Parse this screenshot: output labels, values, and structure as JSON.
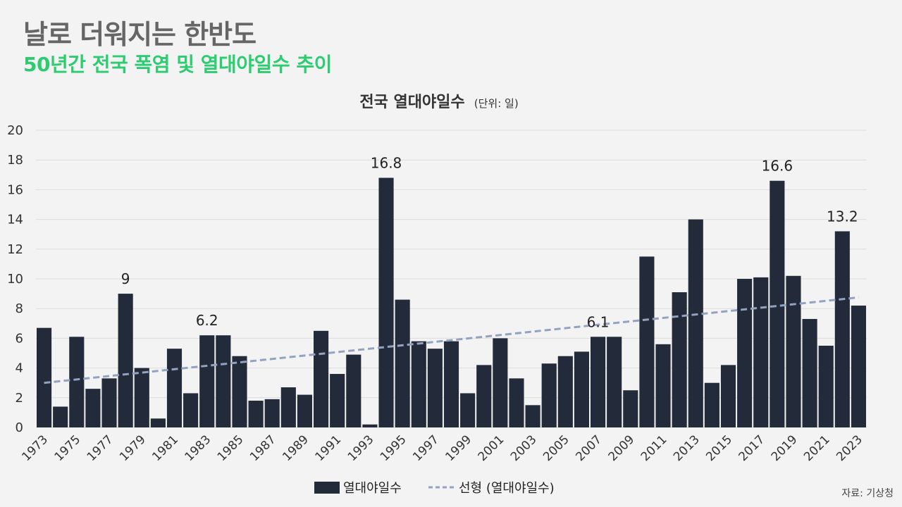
{
  "header": {
    "title": "날로 더워지는 한반도",
    "subtitle": "50년간 전국 폭염 및 열대야일수 추이"
  },
  "source": "자료: 기상청",
  "colors": {
    "bar": "#232b3a",
    "trend": "#93a3bf",
    "title": "#666666",
    "subtitle": "#2ecc71",
    "grid": "#dcdcdc"
  },
  "chart_data": {
    "type": "bar",
    "title": "전국 열대야일수",
    "unit_label": "(단위: 일)",
    "ylim": [
      0,
      20
    ],
    "yticks": [
      "0",
      "2",
      "4",
      "6",
      "8",
      "10",
      "12",
      "14",
      "16",
      "18",
      "20"
    ],
    "grid": true,
    "legend_position": "bottom",
    "categories": [
      "1973",
      "1974",
      "1975",
      "1976",
      "1977",
      "1978",
      "1979",
      "1980",
      "1981",
      "1982",
      "1983",
      "1984",
      "1985",
      "1986",
      "1987",
      "1988",
      "1989",
      "1990",
      "1991",
      "1992",
      "1993",
      "1994",
      "1995",
      "1996",
      "1997",
      "1998",
      "1999",
      "2000",
      "2001",
      "2002",
      "2003",
      "2004",
      "2005",
      "2006",
      "2007",
      "2008",
      "2009",
      "2010",
      "2011",
      "2012",
      "2013",
      "2014",
      "2015",
      "2016",
      "2017",
      "2018",
      "2019",
      "2020",
      "2021",
      "2022",
      "2023"
    ],
    "xtick_labels": [
      "1973",
      "1975",
      "1977",
      "1979",
      "1981",
      "1983",
      "1985",
      "1987",
      "1989",
      "1991",
      "1993",
      "1995",
      "1997",
      "1999",
      "2001",
      "2003",
      "2005",
      "2007",
      "2009",
      "2011",
      "2013",
      "2015",
      "2017",
      "2019",
      "2021",
      "2023"
    ],
    "series": [
      {
        "name": "열대야일수",
        "values": [
          6.7,
          1.4,
          6.1,
          2.6,
          3.3,
          9.0,
          4.0,
          0.6,
          5.3,
          2.3,
          6.2,
          6.2,
          4.8,
          1.8,
          1.9,
          2.7,
          2.2,
          6.5,
          3.6,
          4.9,
          0.2,
          16.8,
          8.6,
          5.8,
          5.3,
          5.8,
          2.3,
          4.2,
          6.0,
          3.3,
          1.5,
          4.3,
          4.8,
          5.1,
          6.1,
          6.1,
          2.5,
          11.5,
          5.6,
          9.1,
          14.0,
          3.0,
          4.2,
          10.0,
          10.1,
          16.6,
          10.2,
          7.3,
          5.5,
          13.2,
          8.2
        ]
      }
    ],
    "trendline": {
      "name": "선형 (열대야일수)",
      "start": 3.0,
      "end": 8.75
    },
    "data_labels": [
      {
        "category": "1978",
        "text": "9"
      },
      {
        "category": "1983",
        "text": "6.2"
      },
      {
        "category": "1994",
        "text": "16.8"
      },
      {
        "category": "2007",
        "text": "6.1"
      },
      {
        "category": "2018",
        "text": "16.6"
      },
      {
        "category": "2022",
        "text": "13.2"
      }
    ]
  }
}
